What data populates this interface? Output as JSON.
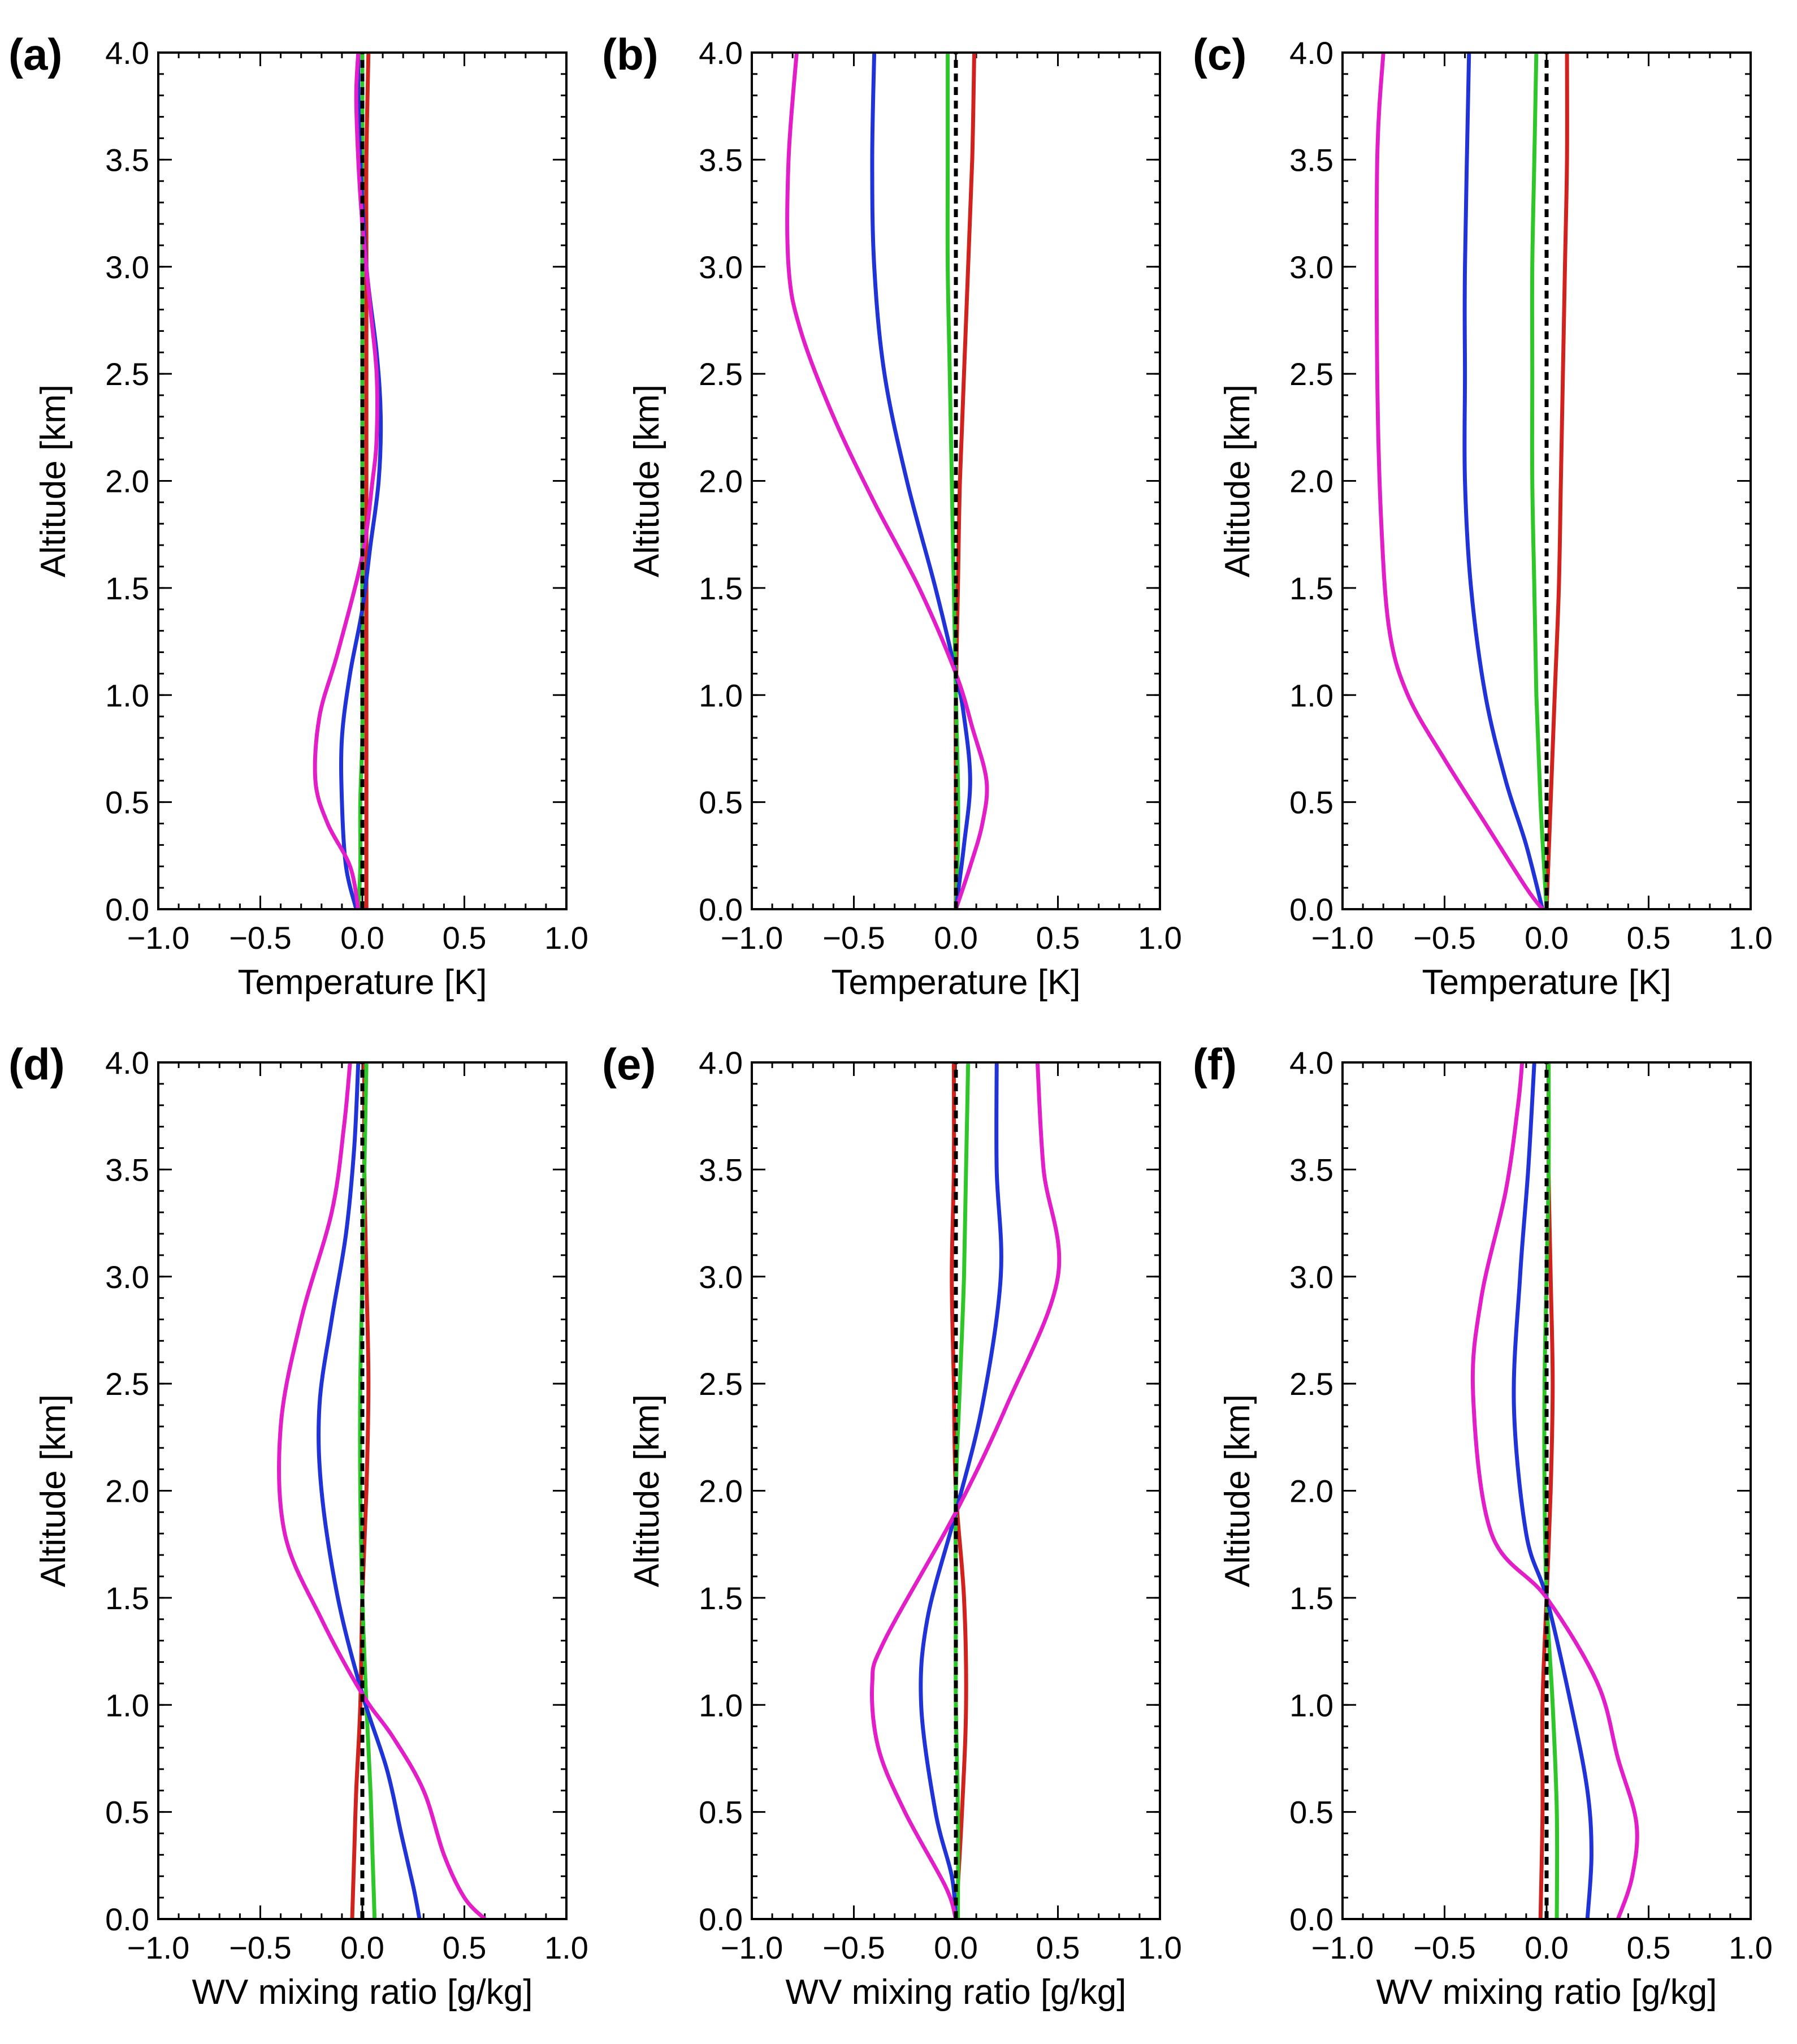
{
  "figure": {
    "series_colors": {
      "red": "#d0231d",
      "green": "#2fc62a",
      "blue": "#1f33d6",
      "magenta": "#e21ec8",
      "zero": "#000000"
    }
  },
  "chart_data": [
    {
      "id": "a",
      "panel_label": "(a)",
      "type": "line",
      "xlabel": "Temperature [K]",
      "ylabel": "Altitude [km]",
      "xlim": [
        -1.0,
        1.0
      ],
      "ylim": [
        0.0,
        4.0
      ],
      "xticks": [
        "−1.0",
        "−0.5",
        "0.0",
        "0.5",
        "1.0"
      ],
      "yticks": [
        "0.0",
        "0.5",
        "1.0",
        "1.5",
        "2.0",
        "2.5",
        "3.0",
        "3.5",
        "4.0"
      ],
      "reference_line": {
        "x": 0.0,
        "style": "dashed"
      },
      "series": [
        {
          "name": "red",
          "color": "#d0231d",
          "x": [
            0.02,
            0.02,
            0.02,
            0.02,
            0.02,
            0.02,
            0.02,
            0.02,
            0.02,
            0.02,
            0.02,
            0.03
          ],
          "y": [
            0,
            0.3,
            0.6,
            0.9,
            1.2,
            1.5,
            1.8,
            2.2,
            2.6,
            3.0,
            3.5,
            4.0
          ]
        },
        {
          "name": "green",
          "color": "#2fc62a",
          "x": [
            -0.02,
            -0.01,
            -0.01,
            0,
            0,
            0,
            0,
            0,
            0,
            0,
            0,
            0
          ],
          "y": [
            0,
            0.2,
            0.5,
            0.8,
            1.0,
            1.3,
            1.7,
            2.0,
            2.5,
            3.0,
            3.5,
            4.0
          ]
        },
        {
          "name": "blue",
          "color": "#1f33d6",
          "x": [
            -0.03,
            -0.08,
            -0.1,
            -0.1,
            -0.06,
            0,
            0.04,
            0.08,
            0.09,
            0.07,
            0.02,
            -0.01,
            -0.02,
            -0.02
          ],
          "y": [
            0,
            0.2,
            0.5,
            0.8,
            1.1,
            1.4,
            1.7,
            2.0,
            2.3,
            2.6,
            3.0,
            3.5,
            3.8,
            4.0
          ]
        },
        {
          "name": "magenta",
          "color": "#e21ec8",
          "x": [
            -0.02,
            -0.06,
            -0.17,
            -0.23,
            -0.21,
            -0.12,
            0,
            0.05,
            0.07,
            0.07,
            0.04,
            0,
            -0.02,
            -0.03,
            -0.02
          ],
          "y": [
            0,
            0.2,
            0.4,
            0.6,
            0.9,
            1.2,
            1.65,
            2.0,
            2.2,
            2.5,
            2.8,
            3.2,
            3.5,
            3.8,
            4.0
          ]
        }
      ]
    },
    {
      "id": "b",
      "panel_label": "(b)",
      "type": "line",
      "xlabel": "Temperature [K]",
      "ylabel": "Altitude [km]",
      "xlim": [
        -1.0,
        1.0
      ],
      "ylim": [
        0.0,
        4.0
      ],
      "xticks": [
        "−1.0",
        "−0.5",
        "0.0",
        "0.5",
        "1.0"
      ],
      "yticks": [
        "0.0",
        "0.5",
        "1.0",
        "1.5",
        "2.0",
        "2.5",
        "3.0",
        "3.5",
        "4.0"
      ],
      "reference_line": {
        "x": 0.0,
        "style": "dashed"
      },
      "series": [
        {
          "name": "red",
          "color": "#d0231d",
          "x": [
            0,
            0,
            0,
            0,
            0.01,
            0.02,
            0.04,
            0.06,
            0.08,
            0.09
          ],
          "y": [
            0,
            0.3,
            0.6,
            1.0,
            1.5,
            2.0,
            2.5,
            3.0,
            3.5,
            4.0
          ]
        },
        {
          "name": "green",
          "color": "#2fc62a",
          "x": [
            0,
            0.01,
            0.01,
            0,
            -0.01,
            -0.02,
            -0.03,
            -0.04,
            -0.04,
            -0.04
          ],
          "y": [
            0,
            0.3,
            0.6,
            1.0,
            1.5,
            2.0,
            2.5,
            3.0,
            3.5,
            4.0
          ]
        },
        {
          "name": "blue",
          "color": "#1f33d6",
          "x": [
            0,
            0.04,
            0.07,
            0.04,
            0,
            -0.1,
            -0.24,
            -0.35,
            -0.4,
            -0.41,
            -0.4
          ],
          "y": [
            0,
            0.3,
            0.6,
            0.9,
            1.1,
            1.5,
            2.0,
            2.5,
            3.0,
            3.5,
            4.0
          ]
        },
        {
          "name": "magenta",
          "color": "#e21ec8",
          "x": [
            0,
            0.07,
            0.13,
            0.15,
            0.08,
            0,
            -0.18,
            -0.4,
            -0.6,
            -0.76,
            -0.82,
            -0.82,
            -0.78
          ],
          "y": [
            0,
            0.2,
            0.4,
            0.6,
            0.85,
            1.1,
            1.5,
            1.9,
            2.3,
            2.7,
            3.0,
            3.5,
            4.0
          ]
        }
      ]
    },
    {
      "id": "c",
      "panel_label": "(c)",
      "type": "line",
      "xlabel": "Temperature [K]",
      "ylabel": "Altitude [km]",
      "xlim": [
        -1.0,
        1.0
      ],
      "ylim": [
        0.0,
        4.0
      ],
      "xticks": [
        "−1.0",
        "−0.5",
        "0.0",
        "0.5",
        "1.0"
      ],
      "yticks": [
        "0.0",
        "0.5",
        "1.0",
        "1.5",
        "2.0",
        "2.5",
        "3.0",
        "3.5",
        "4.0"
      ],
      "reference_line": {
        "x": 0.0,
        "style": "dashed"
      },
      "series": [
        {
          "name": "red",
          "color": "#d0231d",
          "x": [
            0,
            0.02,
            0.04,
            0.06,
            0.07,
            0.08,
            0.09,
            0.1,
            0.1
          ],
          "y": [
            0,
            0.5,
            1.0,
            1.5,
            2.0,
            2.5,
            3.0,
            3.5,
            4.0
          ]
        },
        {
          "name": "green",
          "color": "#2fc62a",
          "x": [
            0,
            -0.03,
            -0.05,
            -0.06,
            -0.07,
            -0.07,
            -0.07,
            -0.06,
            -0.05
          ],
          "y": [
            0,
            0.5,
            1.0,
            1.5,
            2.0,
            2.5,
            3.0,
            3.5,
            4.0
          ]
        },
        {
          "name": "blue",
          "color": "#1f33d6",
          "x": [
            -0.02,
            -0.1,
            -0.2,
            -0.3,
            -0.37,
            -0.4,
            -0.4,
            -0.4,
            -0.38
          ],
          "y": [
            0,
            0.3,
            0.6,
            1.0,
            1.5,
            2.0,
            2.5,
            3.0,
            4.0
          ]
        },
        {
          "name": "magenta",
          "color": "#e21ec8",
          "x": [
            -0.02,
            -0.1,
            -0.3,
            -0.5,
            -0.68,
            -0.77,
            -0.81,
            -0.83,
            -0.83,
            -0.8
          ],
          "y": [
            0,
            0.1,
            0.4,
            0.7,
            1.0,
            1.3,
            1.8,
            2.5,
            3.5,
            4.0
          ]
        }
      ]
    },
    {
      "id": "d",
      "panel_label": "(d)",
      "type": "line",
      "xlabel": "WV mixing ratio [g/kg]",
      "ylabel": "Altitude [km]",
      "xlim": [
        -1.0,
        1.0
      ],
      "ylim": [
        0.0,
        4.0
      ],
      "xticks": [
        "−1.0",
        "−0.5",
        "0.0",
        "0.5",
        "1.0"
      ],
      "yticks": [
        "0.0",
        "0.5",
        "1.0",
        "1.5",
        "2.0",
        "2.5",
        "3.0",
        "3.5",
        "4.0"
      ],
      "reference_line": {
        "x": 0.0,
        "style": "dashed"
      },
      "series": [
        {
          "name": "red",
          "color": "#d0231d",
          "x": [
            -0.05,
            -0.04,
            -0.03,
            -0.01,
            0,
            0.02,
            0.03,
            0.02,
            0.01,
            0.01
          ],
          "y": [
            0,
            0.3,
            0.6,
            1.0,
            1.5,
            2.0,
            2.5,
            3.0,
            3.5,
            4.0
          ]
        },
        {
          "name": "green",
          "color": "#2fc62a",
          "x": [
            0.06,
            0.05,
            0.04,
            0.02,
            0,
            -0.01,
            -0.01,
            0,
            0.01,
            0.02
          ],
          "y": [
            0,
            0.3,
            0.6,
            1.0,
            1.5,
            2.0,
            2.5,
            3.0,
            3.5,
            4.0
          ]
        },
        {
          "name": "blue",
          "color": "#1f33d6",
          "x": [
            0.28,
            0.25,
            0.19,
            0.12,
            0,
            -0.12,
            -0.2,
            -0.21,
            -0.15,
            -0.08,
            -0.04,
            -0.02
          ],
          "y": [
            0,
            0.15,
            0.4,
            0.7,
            1.05,
            1.5,
            2.0,
            2.4,
            2.8,
            3.2,
            3.6,
            4.0
          ]
        },
        {
          "name": "magenta",
          "color": "#e21ec8",
          "x": [
            0.6,
            0.5,
            0.4,
            0.3,
            0.15,
            0,
            -0.2,
            -0.38,
            -0.4,
            -0.3,
            -0.15,
            -0.09,
            -0.06
          ],
          "y": [
            0,
            0.1,
            0.3,
            0.6,
            0.85,
            1.05,
            1.4,
            1.8,
            2.3,
            2.8,
            3.3,
            3.7,
            4.0
          ]
        }
      ]
    },
    {
      "id": "e",
      "panel_label": "(e)",
      "type": "line",
      "xlabel": "WV mixing ratio [g/kg]",
      "ylabel": "Altitude [km]",
      "xlim": [
        -1.0,
        1.0
      ],
      "ylim": [
        0.0,
        4.0
      ],
      "xticks": [
        "−1.0",
        "−0.5",
        "0.0",
        "0.5",
        "1.0"
      ],
      "yticks": [
        "0.0",
        "0.5",
        "1.0",
        "1.5",
        "2.0",
        "2.5",
        "3.0",
        "3.5",
        "4.0"
      ],
      "reference_line": {
        "x": 0.0,
        "style": "dashed"
      },
      "series": [
        {
          "name": "red",
          "color": "#d0231d",
          "x": [
            0,
            0.03,
            0.05,
            0.04,
            0,
            -0.01,
            -0.02,
            -0.01,
            -0.01
          ],
          "y": [
            0,
            0.5,
            1.0,
            1.5,
            2.0,
            2.5,
            3.0,
            3.5,
            4.0
          ]
        },
        {
          "name": "green",
          "color": "#2fc62a",
          "x": [
            0.01,
            0.01,
            0,
            0,
            0,
            0.02,
            0.04,
            0.05,
            0.06
          ],
          "y": [
            0,
            0.5,
            1.0,
            1.5,
            2.0,
            2.5,
            3.0,
            3.5,
            4.0
          ]
        },
        {
          "name": "blue",
          "color": "#1f33d6",
          "x": [
            0,
            -0.02,
            -0.1,
            -0.17,
            -0.14,
            0,
            0.13,
            0.22,
            0.2,
            0.2
          ],
          "y": [
            0,
            0.2,
            0.5,
            1.0,
            1.4,
            1.9,
            2.4,
            3.0,
            3.5,
            4.0
          ]
        },
        {
          "name": "magenta",
          "color": "#e21ec8",
          "x": [
            0,
            -0.05,
            -0.25,
            -0.38,
            -0.41,
            -0.35,
            0,
            0.25,
            0.5,
            0.43,
            0.4
          ],
          "y": [
            0,
            0.15,
            0.5,
            0.8,
            1.1,
            1.3,
            1.9,
            2.4,
            3.0,
            3.5,
            4.0
          ]
        }
      ]
    },
    {
      "id": "f",
      "panel_label": "(f)",
      "type": "line",
      "xlabel": "WV mixing ratio [g/kg]",
      "ylabel": "Altitude [km]",
      "xlim": [
        -1.0,
        1.0
      ],
      "ylim": [
        0.0,
        4.0
      ],
      "xticks": [
        "−1.0",
        "−0.5",
        "0.0",
        "0.5",
        "1.0"
      ],
      "yticks": [
        "0.0",
        "0.5",
        "1.0",
        "1.5",
        "2.0",
        "2.5",
        "3.0",
        "3.5",
        "4.0"
      ],
      "reference_line": {
        "x": 0.0,
        "style": "dashed"
      },
      "series": [
        {
          "name": "red",
          "color": "#d0231d",
          "x": [
            -0.03,
            -0.02,
            -0.02,
            0,
            0.02,
            0.03,
            0.02,
            0.01,
            0.01
          ],
          "y": [
            0,
            0.5,
            1.0,
            1.5,
            2.0,
            2.5,
            3.0,
            3.5,
            4.0
          ]
        },
        {
          "name": "green",
          "color": "#2fc62a",
          "x": [
            0.05,
            0.05,
            0.03,
            0,
            -0.01,
            -0.01,
            0,
            0.01,
            0.01
          ],
          "y": [
            0,
            0.5,
            1.0,
            1.5,
            2.0,
            2.5,
            3.0,
            3.5,
            4.0
          ]
        },
        {
          "name": "blue",
          "color": "#1f33d6",
          "x": [
            0.2,
            0.22,
            0.2,
            0.12,
            0,
            -0.1,
            -0.16,
            -0.13,
            -0.09,
            -0.06
          ],
          "y": [
            0,
            0.3,
            0.6,
            1.0,
            1.5,
            1.8,
            2.4,
            3.0,
            3.5,
            4.0
          ]
        },
        {
          "name": "magenta",
          "color": "#e21ec8",
          "x": [
            0.35,
            0.42,
            0.44,
            0.35,
            0.25,
            0,
            -0.27,
            -0.36,
            -0.32,
            -0.2,
            -0.14,
            -0.12
          ],
          "y": [
            0,
            0.2,
            0.45,
            0.75,
            1.1,
            1.5,
            1.8,
            2.45,
            2.9,
            3.4,
            3.8,
            4.0
          ]
        }
      ]
    }
  ]
}
